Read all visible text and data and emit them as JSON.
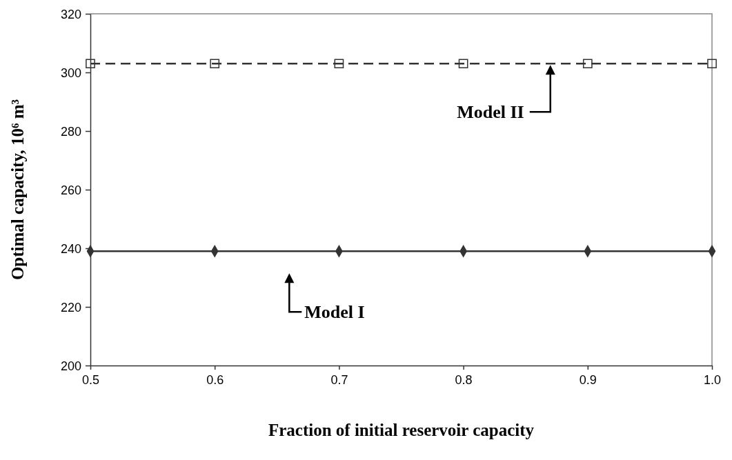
{
  "chart_data": {
    "type": "line",
    "xlabel": "Fraction of initial reservoir capacity",
    "ylabel": "Optimal capacity, 10⁶ m³",
    "x": [
      0.5,
      0.6,
      0.7,
      0.8,
      0.9,
      1.0
    ],
    "series": [
      {
        "color": "#333333",
        "values": [
          239,
          239,
          239,
          239,
          239,
          239
        ],
        "marker": "diamond",
        "line_style": "solid"
      },
      {
        "color": "#333333",
        "values": [
          303,
          303,
          303,
          303,
          303,
          303
        ],
        "marker": "square",
        "line_style": "dashed"
      }
    ],
    "xlim": [
      0.5,
      1.0
    ],
    "xticks": [
      0.5,
      0.6,
      0.7,
      0.8,
      0.9,
      {
        "value": 1.0,
        "label": "1.0"
      }
    ],
    "ylim": [
      200,
      320
    ],
    "yticks": [
      200,
      220,
      240,
      260,
      280,
      300,
      320
    ],
    "grid": false,
    "annotations": [
      {
        "text": "Model II",
        "x": 0.87,
        "y": 303
      },
      {
        "text": "Model I",
        "x": 0.66,
        "y": 239
      }
    ]
  }
}
